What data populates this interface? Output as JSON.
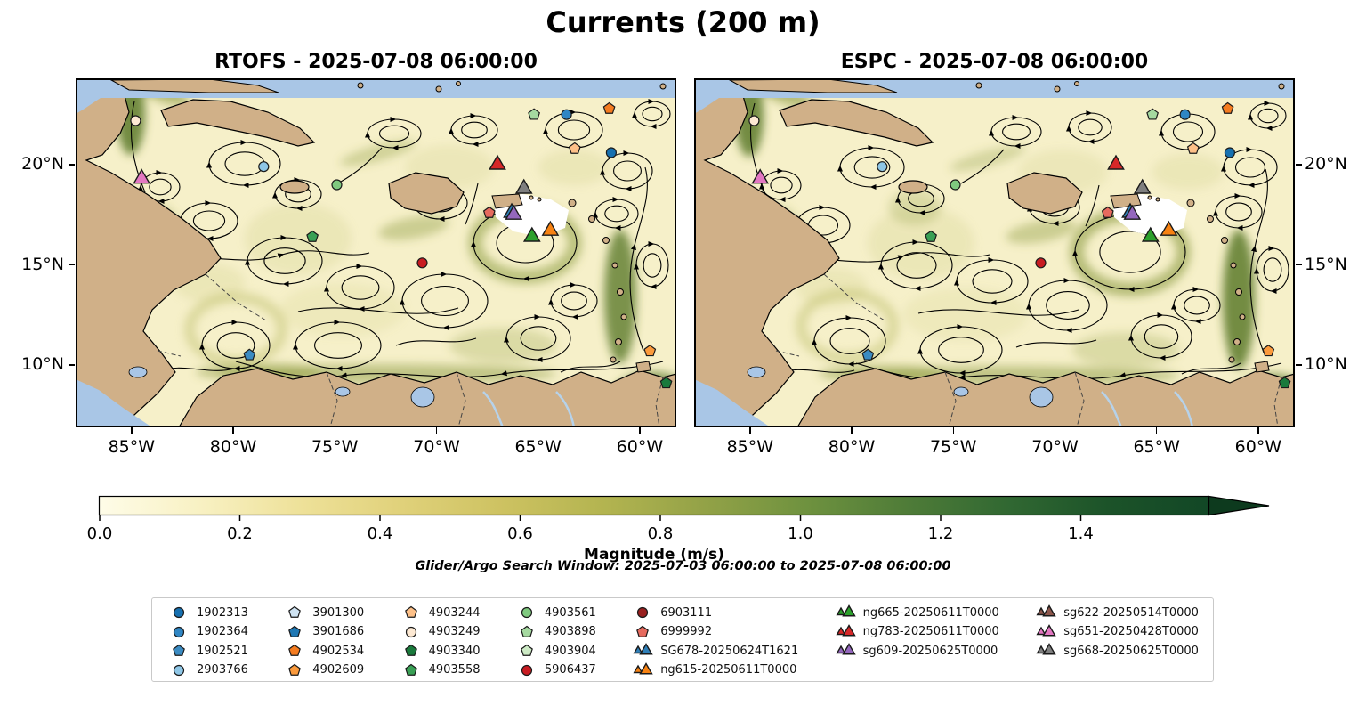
{
  "title": "Currents (200 m)",
  "panels": [
    {
      "id": "rtofs",
      "title": "RTOFS - 2025-07-08 06:00:00"
    },
    {
      "id": "espc",
      "title": "ESPC - 2025-07-08 06:00:00"
    }
  ],
  "axes": {
    "x_ticks": [
      "85°W",
      "80°W",
      "75°W",
      "70°W",
      "65°W",
      "60°W"
    ],
    "y_ticks": [
      "20°N",
      "15°N",
      "10°N"
    ]
  },
  "colorbar": {
    "label": "Magnitude (m/s)",
    "ticks": [
      "0.0",
      "0.2",
      "0.4",
      "0.6",
      "0.8",
      "1.0",
      "1.2",
      "1.4"
    ],
    "gradient": [
      "#fefce8",
      "#f8f1c3",
      "#eee199",
      "#e0d17a",
      "#cdc261",
      "#b3b450",
      "#93a247",
      "#6f923f",
      "#4f7c38",
      "#316832",
      "#1c5329",
      "#124726"
    ],
    "tip_color": "#0d3a1e"
  },
  "subtitle": "Glider/Argo Search Window: 2025-07-03 06:00:00 to 2025-07-08 06:00:00",
  "legend": {
    "columns": [
      [
        {
          "id": "1902313",
          "shape": "circle",
          "color": "#1670b0"
        },
        {
          "id": "1902364",
          "shape": "circle",
          "color": "#2f86c4"
        },
        {
          "id": "1902521",
          "shape": "pentagon",
          "color": "#3b8bc2"
        },
        {
          "id": "2903766",
          "shape": "circle",
          "color": "#8ec6e6"
        }
      ],
      [
        {
          "id": "3901300",
          "shape": "pentagon",
          "color": "#cfe3f2"
        },
        {
          "id": "3901686",
          "shape": "pentagon",
          "color": "#1f78b4"
        },
        {
          "id": "4902534",
          "shape": "pentagon",
          "color": "#f57c20"
        },
        {
          "id": "4902609",
          "shape": "pentagon",
          "color": "#fb9a3c"
        }
      ],
      [
        {
          "id": "4903244",
          "shape": "pentagon",
          "color": "#fdc088"
        },
        {
          "id": "4903249",
          "shape": "circle",
          "color": "#fde9d3"
        },
        {
          "id": "4903340",
          "shape": "pentagon",
          "color": "#1a7a3c"
        },
        {
          "id": "4903558",
          "shape": "pentagon",
          "color": "#39a055"
        }
      ],
      [
        {
          "id": "4903561",
          "shape": "circle",
          "color": "#7fc97f"
        },
        {
          "id": "4903898",
          "shape": "pentagon",
          "color": "#a5d9a0"
        },
        {
          "id": "4903904",
          "shape": "pentagon",
          "color": "#cdeac5"
        },
        {
          "id": "5906437",
          "shape": "circle",
          "color": "#c81c22"
        }
      ],
      [
        {
          "id": "6903111",
          "shape": "circle",
          "color": "#99201f"
        },
        {
          "id": "6999992",
          "shape": "pentagon",
          "color": "#e66a5e"
        },
        {
          "id": "SG678-20250624T1621",
          "shape": "triangle",
          "color": "#2f7fb8"
        },
        {
          "id": "ng615-20250611T0000",
          "shape": "triangle",
          "color": "#f78212"
        }
      ],
      [
        {
          "id": "ng665-20250611T0000",
          "shape": "triangle",
          "color": "#2ca02c"
        },
        {
          "id": "ng783-20250611T0000",
          "shape": "triangle",
          "color": "#d62728"
        },
        {
          "id": "sg609-20250625T0000",
          "shape": "triangle",
          "color": "#9467bd"
        }
      ],
      [
        {
          "id": "sg622-20250514T0000",
          "shape": "triangle",
          "color": "#8c564b"
        },
        {
          "id": "sg651-20250428T0000",
          "shape": "triangle",
          "color": "#e377c2"
        },
        {
          "id": "sg668-20250625T0000",
          "shape": "triangle",
          "color": "#7f7f7f"
        }
      ]
    ]
  },
  "chart_data": {
    "type": "map",
    "variable": "ocean current magnitude (shading) and streamlines at 200 m depth",
    "title": "Currents (200 m)",
    "panels": [
      "RTOFS - 2025-07-08 06:00:00",
      "ESPC - 2025-07-08 06:00:00"
    ],
    "extent": {
      "lon_west": -87.75,
      "lon_east": -58.2,
      "lat_south": 6.89,
      "lat_north": 24.31
    },
    "x_tick_lons": [
      -85,
      -80,
      -75,
      -70,
      -65,
      -60
    ],
    "y_tick_lats": [
      20,
      15,
      10
    ],
    "colorbar_range": {
      "min": 0.0,
      "max_tick": 1.4,
      "tick_step": 0.2,
      "extend": "max",
      "label": "Magnitude (m/s)"
    },
    "platforms": [
      {
        "id": "4903249",
        "shape": "circle",
        "color": "#fde9d3",
        "lon": -84.8,
        "lat": 22.2
      },
      {
        "id": "sg651-20250428T0000",
        "shape": "triangle",
        "color": "#e377c2",
        "lon": -84.5,
        "lat": 19.3
      },
      {
        "id": "2903766",
        "shape": "circle",
        "color": "#8ec6e6",
        "lon": -78.5,
        "lat": 19.9
      },
      {
        "id": "4903561",
        "shape": "circle",
        "color": "#7fc97f",
        "lon": -74.9,
        "lat": 19.0
      },
      {
        "id": "4903558",
        "shape": "pentagon",
        "color": "#39a055",
        "lon": -76.1,
        "lat": 16.4
      },
      {
        "id": "5906437",
        "shape": "circle",
        "color": "#c81c22",
        "lon": -70.7,
        "lat": 15.1
      },
      {
        "id": "ng783-20250611T0000",
        "shape": "triangle",
        "color": "#d62728",
        "lon": -67.0,
        "lat": 20.0
      },
      {
        "id": "6999992",
        "shape": "pentagon",
        "color": "#e66a5e",
        "lon": -67.4,
        "lat": 17.6
      },
      {
        "id": "SG678-20250624T1621",
        "shape": "triangle",
        "color": "#2f7fb8",
        "lon": -66.3,
        "lat": 17.6
      },
      {
        "id": "sg668-20250625T0000",
        "shape": "triangle",
        "color": "#7f7f7f",
        "lon": -65.7,
        "lat": 18.8
      },
      {
        "id": "sg609-20250625T0000",
        "shape": "triangle",
        "color": "#9467bd",
        "lon": -66.2,
        "lat": 17.5
      },
      {
        "id": "ng615-20250611T0000",
        "shape": "triangle",
        "color": "#f78212",
        "lon": -64.4,
        "lat": 16.7
      },
      {
        "id": "ng665-20250611T0000",
        "shape": "triangle",
        "color": "#2ca02c",
        "lon": -65.3,
        "lat": 16.4
      },
      {
        "id": "4903898",
        "shape": "pentagon",
        "color": "#a5d9a0",
        "lon": -65.2,
        "lat": 22.5
      },
      {
        "id": "1902364",
        "shape": "circle",
        "color": "#2f86c4",
        "lon": -63.6,
        "lat": 22.5
      },
      {
        "id": "4902534",
        "shape": "pentagon",
        "color": "#f57c20",
        "lon": -61.5,
        "lat": 22.8
      },
      {
        "id": "4903244",
        "shape": "pentagon",
        "color": "#fdc088",
        "lon": -63.2,
        "lat": 20.8
      },
      {
        "id": "1902313",
        "shape": "circle",
        "color": "#1670b0",
        "lon": -61.4,
        "lat": 20.6
      },
      {
        "id": "1902521",
        "shape": "pentagon",
        "color": "#3b8bc2",
        "lon": -79.2,
        "lat": 10.5
      },
      {
        "id": "4902609",
        "shape": "pentagon",
        "color": "#fb9a3c",
        "lon": -59.5,
        "lat": 10.7
      },
      {
        "id": "4903340",
        "shape": "pentagon",
        "color": "#1a7a3c",
        "lon": -58.7,
        "lat": 9.1
      }
    ]
  }
}
